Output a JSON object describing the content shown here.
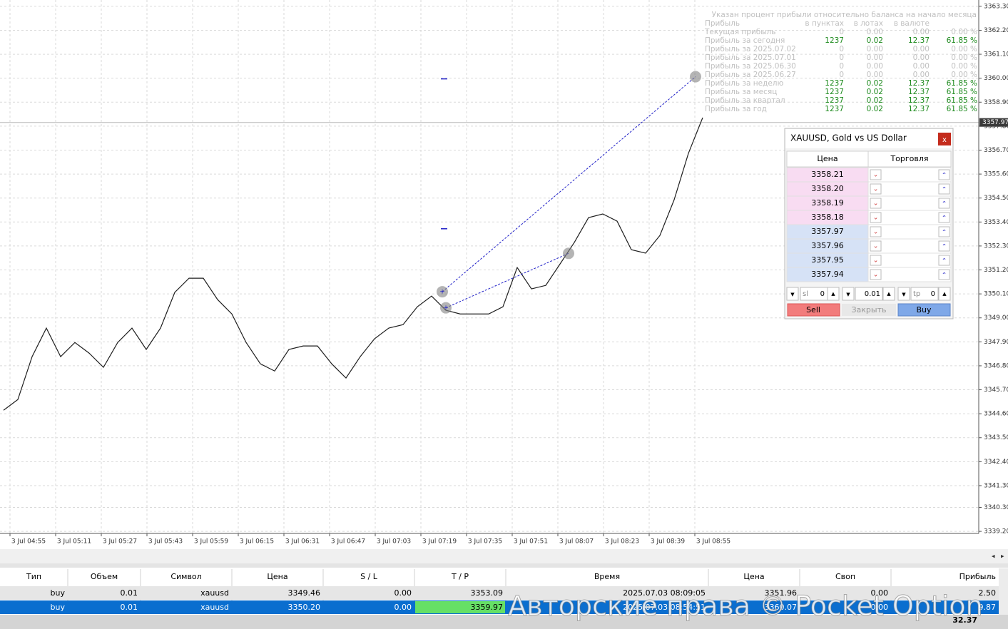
{
  "chart_data": {
    "type": "line",
    "color": "#1e1e1e",
    "grid": true,
    "values": [
      3344.76,
      3345.25,
      3347.22,
      3348.53,
      3347.22,
      3347.87,
      3347.38,
      3346.73,
      3347.87,
      3348.53,
      3347.55,
      3348.53,
      3350.17,
      3350.82,
      3350.82,
      3349.84,
      3349.18,
      3347.87,
      3346.89,
      3346.56,
      3347.55,
      3347.71,
      3347.71,
      3346.89,
      3346.24,
      3347.22,
      3348.04,
      3348.53,
      3348.69,
      3349.51,
      3350.0,
      3349.35,
      3349.18,
      3349.18,
      3349.18,
      3349.51,
      3351.31,
      3350.33,
      3350.49,
      3351.47,
      3352.46,
      3353.6,
      3353.77,
      3353.44,
      3352.13,
      3351.97,
      3352.78,
      3354.42,
      3356.55,
      3358.19
    ],
    "ylim": [
      3339.04,
      3363.59
    ],
    "yticks": [
      {
        "value": 3363.3,
        "label": "3363.30"
      },
      {
        "value": 3362.2,
        "label": "3362.20"
      },
      {
        "value": 3361.1,
        "label": "3361.10"
      },
      {
        "value": 3360,
        "label": "3360.00"
      },
      {
        "value": 3358.9,
        "label": "3358.90"
      },
      {
        "value": 3357.8,
        "label": "3357.80"
      },
      {
        "value": 3356.7,
        "label": "3356.70"
      },
      {
        "value": 3355.6,
        "label": "3355.60"
      },
      {
        "value": 3354.5,
        "label": "3354.50"
      },
      {
        "value": 3353.4,
        "label": "3353.40"
      },
      {
        "value": 3352.3,
        "label": "3352.30"
      },
      {
        "value": 3351.2,
        "label": "3351.20"
      },
      {
        "value": 3350.1,
        "label": "3350.10"
      },
      {
        "value": 3349,
        "label": "3349.00"
      },
      {
        "value": 3347.9,
        "label": "3347.90"
      },
      {
        "value": 3346.8,
        "label": "3346.80"
      },
      {
        "value": 3345.7,
        "label": "3345.70"
      },
      {
        "value": 3344.6,
        "label": "3344.60"
      },
      {
        "value": 3343.5,
        "label": "3343.50"
      },
      {
        "value": 3342.4,
        "label": "3342.40"
      },
      {
        "value": 3341.3,
        "label": "3341.30"
      },
      {
        "value": 3340.3,
        "label": "3340.30"
      },
      {
        "value": 3339.2,
        "label": "3339.20"
      }
    ],
    "current_price": 3357.97,
    "time_labels": [
      "3 Jul 04:55",
      "3 Jul 05:11",
      "3 Jul 05:27",
      "3 Jul 05:43",
      "3 Jul 05:59",
      "3 Jul 06:15",
      "3 Jul 06:31",
      "3 Jul 06:47",
      "3 Jul 07:03",
      "3 Jul 07:19",
      "3 Jul 07:35",
      "3 Jul 07:51",
      "3 Jul 08:07",
      "3 Jul 08:23",
      "3 Jul 08:39",
      "3 Jul 08:55"
    ]
  },
  "profit_panel": {
    "note": "Указан процент прибыли относительно баланса на начало месяца",
    "headers": [
      "Прибыль",
      "в пунктах",
      "в лотах",
      "в валюте"
    ],
    "rows": [
      [
        "Текущая прибыль",
        "0",
        "0.00",
        "0.00",
        "0.00 %"
      ],
      [
        "Прибыль за сегодня",
        "1237",
        "0.02",
        "12.37",
        "61.85 %"
      ],
      [
        "Прибыль за 2025.07.02",
        "0",
        "0.00",
        "0.00",
        "0.00 %"
      ],
      [
        "Прибыль за 2025.07.01",
        "0",
        "0.00",
        "0.00",
        "0.00 %"
      ],
      [
        "Прибыль за 2025.06.30",
        "0",
        "0.00",
        "0.00",
        "0.00 %"
      ],
      [
        "Прибыль за 2025.06.27",
        "0",
        "0.00",
        "0.00",
        "0.00 %"
      ],
      [
        "Прибыль за неделю",
        "1237",
        "0.02",
        "12.37",
        "61.85 %"
      ],
      [
        "Прибыль за месяц",
        "1237",
        "0.02",
        "12.37",
        "61.85 %"
      ],
      [
        "Прибыль за квартал",
        "1237",
        "0.02",
        "12.37",
        "61.85 %"
      ],
      [
        "Прибыль за год",
        "1237",
        "0.02",
        "12.37",
        "61.85 %"
      ]
    ]
  },
  "trade_panel": {
    "title": "XAUUSD, Gold vs US Dollar",
    "close": "x",
    "headers": [
      "Цена",
      "Торговля"
    ],
    "ask_prices": [
      "3358.21",
      "3358.20",
      "3358.19",
      "3358.18"
    ],
    "bid_prices": [
      "3357.97",
      "3357.96",
      "3357.95",
      "3357.94"
    ],
    "sl_label": "sl",
    "sl": "0",
    "lot": "0.01",
    "tp_label": "tp",
    "tp": "0",
    "sell": "Sell",
    "close_button": "Закрыть",
    "buy": "Buy"
  },
  "orders": {
    "headers": [
      "Тип",
      "Объем",
      "Символ",
      "Цена",
      "S / L",
      "T / P",
      "Время",
      "Цена",
      "Своп",
      "Прибыль"
    ],
    "rows": [
      [
        "buy",
        "0.01",
        "xauusd",
        "3349.46",
        "0.00",
        "3353.09",
        "2025.07.03 08:09:05",
        "3351.96",
        "0.00",
        "2.50"
      ],
      [
        "buy",
        "0.01",
        "xauusd",
        "3350.20",
        "0.00",
        "3359.97",
        "2025.07.03 08:54:51",
        "3360.07",
        "0.00",
        "9.87"
      ]
    ],
    "total": "32.37"
  },
  "watermark": "Авторские права © Pocket Option"
}
